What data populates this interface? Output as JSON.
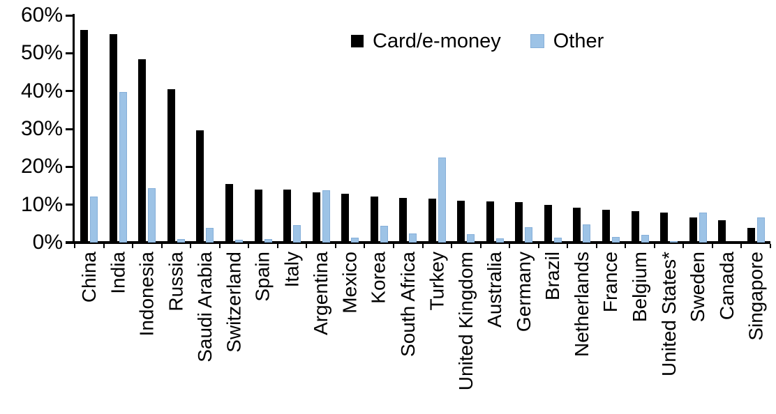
{
  "chart_data": {
    "type": "bar",
    "title": "",
    "xlabel": "",
    "ylabel": "",
    "ylim": [
      0,
      60
    ],
    "ytick_step": 10,
    "ytick_labels": [
      "0%",
      "10%",
      "20%",
      "30%",
      "40%",
      "50%",
      "60%"
    ],
    "grid": false,
    "legend_position": "top-center",
    "value_unit": "percent",
    "categories": [
      "China",
      "India",
      "Indonesia",
      "Russia",
      "Saudi Arabia",
      "Switzerland",
      "Spain",
      "Italy",
      "Argentina",
      "Mexico",
      "Korea",
      "South Africa",
      "Turkey",
      "United Kingdom",
      "Australia",
      "Germany",
      "Brazil",
      "Netherlands",
      "France",
      "Belgium",
      "United States*",
      "Sweden",
      "Canada",
      "Singapore"
    ],
    "series": [
      {
        "name": "Card/e-money",
        "color": "#000000",
        "values": [
          56.2,
          55.0,
          48.4,
          40.5,
          29.7,
          15.5,
          14.0,
          14.0,
          13.3,
          12.9,
          12.1,
          11.7,
          11.6,
          11.0,
          10.8,
          10.6,
          10.0,
          9.2,
          8.7,
          8.2,
          7.9,
          6.6,
          5.9,
          3.9
        ],
        "swatch_icon": "black-square-icon"
      },
      {
        "name": "Other",
        "color": "#9DC3E6",
        "border_color": "#86AFD9",
        "values": [
          12.1,
          39.7,
          14.3,
          1.0,
          3.8,
          0.7,
          1.0,
          4.6,
          13.8,
          1.3,
          4.5,
          2.4,
          22.5,
          2.2,
          1.1,
          4.0,
          1.2,
          4.8,
          1.5,
          2.0,
          0.3,
          8.0,
          0.0,
          6.6
        ],
        "swatch_icon": "blue-square-icon"
      }
    ]
  }
}
